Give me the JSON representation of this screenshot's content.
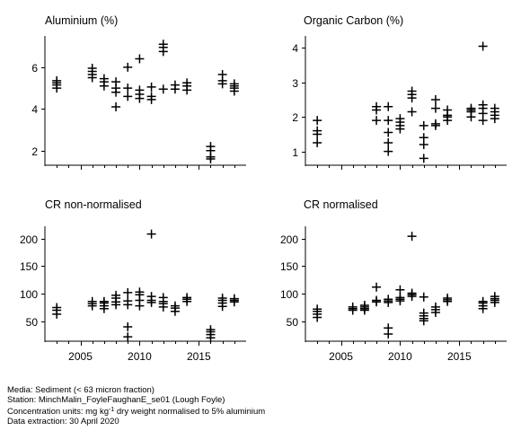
{
  "chart_data": [
    {
      "type": "scatter",
      "title": "Aluminium (%)",
      "xlim": [
        2002,
        2019
      ],
      "ylim": [
        1.3,
        7.5
      ],
      "x_ticks": [
        2005,
        2010,
        2015
      ],
      "y_ticks": [
        2,
        4,
        6
      ],
      "x_tick_labels_shown": false,
      "points": [
        [
          2003,
          5.0
        ],
        [
          2003,
          5.15
        ],
        [
          2003,
          5.25
        ],
        [
          2003,
          5.35
        ],
        [
          2006,
          5.5
        ],
        [
          2006,
          5.65
        ],
        [
          2006,
          5.8
        ],
        [
          2006,
          5.95
        ],
        [
          2007,
          5.1
        ],
        [
          2007,
          5.3
        ],
        [
          2007,
          5.45
        ],
        [
          2008,
          4.1
        ],
        [
          2008,
          4.8
        ],
        [
          2008,
          5.0
        ],
        [
          2008,
          5.3
        ],
        [
          2009,
          4.6
        ],
        [
          2009,
          5.0
        ],
        [
          2009,
          6.0
        ],
        [
          2010,
          4.5
        ],
        [
          2010,
          4.7
        ],
        [
          2010,
          4.9
        ],
        [
          2010,
          6.4
        ],
        [
          2011,
          4.45
        ],
        [
          2011,
          4.6
        ],
        [
          2011,
          5.05
        ],
        [
          2012,
          4.95
        ],
        [
          2012,
          6.75
        ],
        [
          2012,
          6.95
        ],
        [
          2012,
          7.1
        ],
        [
          2013,
          4.95
        ],
        [
          2013,
          5.15
        ],
        [
          2014,
          4.9
        ],
        [
          2014,
          5.1
        ],
        [
          2014,
          5.25
        ],
        [
          2016,
          1.6
        ],
        [
          2016,
          1.7
        ],
        [
          2016,
          2.0
        ],
        [
          2016,
          2.2
        ],
        [
          2017,
          5.2
        ],
        [
          2017,
          5.35
        ],
        [
          2017,
          5.65
        ],
        [
          2018,
          4.85
        ],
        [
          2018,
          5.0
        ],
        [
          2018,
          5.1
        ],
        [
          2018,
          5.2
        ]
      ]
    },
    {
      "type": "scatter",
      "title": "Organic Carbon (%)",
      "xlim": [
        2002,
        2019
      ],
      "ylim": [
        0.6,
        4.35
      ],
      "x_ticks": [
        2005,
        2010,
        2015
      ],
      "y_ticks": [
        1,
        2,
        3,
        4
      ],
      "x_tick_labels_shown": false,
      "points": [
        [
          2003,
          1.25
        ],
        [
          2003,
          1.5
        ],
        [
          2003,
          1.6
        ],
        [
          2003,
          1.9
        ],
        [
          2008,
          1.9
        ],
        [
          2008,
          2.2
        ],
        [
          2008,
          2.3
        ],
        [
          2009,
          1.0
        ],
        [
          2009,
          1.25
        ],
        [
          2009,
          1.55
        ],
        [
          2009,
          1.9
        ],
        [
          2009,
          2.3
        ],
        [
          2010,
          1.65
        ],
        [
          2010,
          1.75
        ],
        [
          2010,
          1.85
        ],
        [
          2010,
          1.95
        ],
        [
          2011,
          2.15
        ],
        [
          2011,
          2.55
        ],
        [
          2011,
          2.65
        ],
        [
          2011,
          2.75
        ],
        [
          2012,
          0.8
        ],
        [
          2012,
          1.2
        ],
        [
          2012,
          1.4
        ],
        [
          2012,
          1.75
        ],
        [
          2013,
          1.75
        ],
        [
          2013,
          1.8
        ],
        [
          2013,
          2.25
        ],
        [
          2013,
          2.5
        ],
        [
          2014,
          1.9
        ],
        [
          2014,
          2.0
        ],
        [
          2014,
          2.05
        ],
        [
          2014,
          2.2
        ],
        [
          2016,
          2.0
        ],
        [
          2016,
          2.15
        ],
        [
          2016,
          2.2
        ],
        [
          2016,
          2.25
        ],
        [
          2017,
          1.9
        ],
        [
          2017,
          2.1
        ],
        [
          2017,
          2.25
        ],
        [
          2017,
          2.35
        ],
        [
          2017,
          4.05
        ],
        [
          2018,
          1.95
        ],
        [
          2018,
          2.05
        ],
        [
          2018,
          2.15
        ],
        [
          2018,
          2.25
        ]
      ]
    },
    {
      "type": "scatter",
      "title": "CR non-normalised",
      "xlim": [
        2002,
        2019
      ],
      "ylim": [
        14,
        222
      ],
      "x_ticks": [
        2005,
        2010,
        2015
      ],
      "y_ticks": [
        50,
        100,
        150,
        200
      ],
      "x_tick_labels_shown": true,
      "x_tick_labels": [
        "2005",
        "2010",
        "2015"
      ],
      "points": [
        [
          2003,
          63
        ],
        [
          2003,
          70
        ],
        [
          2003,
          75
        ],
        [
          2006,
          78
        ],
        [
          2006,
          82
        ],
        [
          2006,
          86
        ],
        [
          2007,
          73
        ],
        [
          2007,
          78
        ],
        [
          2007,
          83
        ],
        [
          2007,
          86
        ],
        [
          2008,
          80
        ],
        [
          2008,
          85
        ],
        [
          2008,
          92
        ],
        [
          2008,
          97
        ],
        [
          2009,
          22
        ],
        [
          2009,
          40
        ],
        [
          2009,
          80
        ],
        [
          2009,
          87
        ],
        [
          2009,
          102
        ],
        [
          2010,
          78
        ],
        [
          2010,
          88
        ],
        [
          2010,
          98
        ],
        [
          2010,
          103
        ],
        [
          2011,
          84
        ],
        [
          2011,
          88
        ],
        [
          2011,
          95
        ],
        [
          2011,
          208
        ],
        [
          2012,
          76
        ],
        [
          2012,
          82
        ],
        [
          2012,
          86
        ],
        [
          2012,
          93
        ],
        [
          2013,
          68
        ],
        [
          2013,
          74
        ],
        [
          2013,
          78
        ],
        [
          2014,
          86
        ],
        [
          2014,
          90
        ],
        [
          2014,
          93
        ],
        [
          2016,
          20
        ],
        [
          2016,
          26
        ],
        [
          2016,
          31
        ],
        [
          2016,
          35
        ],
        [
          2017,
          77
        ],
        [
          2017,
          83
        ],
        [
          2017,
          88
        ],
        [
          2017,
          92
        ],
        [
          2018,
          85
        ],
        [
          2018,
          88
        ],
        [
          2018,
          91
        ]
      ]
    },
    {
      "type": "scatter",
      "title": "CR normalised",
      "xlim": [
        2002,
        2019
      ],
      "ylim": [
        14,
        222
      ],
      "x_ticks": [
        2005,
        2010,
        2015
      ],
      "y_ticks": [
        50,
        100,
        150,
        200
      ],
      "x_tick_labels_shown": true,
      "x_tick_labels": [
        "2005",
        "2010",
        "2015"
      ],
      "points": [
        [
          2003,
          57
        ],
        [
          2003,
          63
        ],
        [
          2003,
          68
        ],
        [
          2003,
          72
        ],
        [
          2006,
          70
        ],
        [
          2006,
          73
        ],
        [
          2006,
          76
        ],
        [
          2007,
          70
        ],
        [
          2007,
          73
        ],
        [
          2007,
          76
        ],
        [
          2007,
          79
        ],
        [
          2008,
          85
        ],
        [
          2008,
          88
        ],
        [
          2008,
          112
        ],
        [
          2009,
          27
        ],
        [
          2009,
          38
        ],
        [
          2009,
          84
        ],
        [
          2009,
          87
        ],
        [
          2009,
          90
        ],
        [
          2010,
          87
        ],
        [
          2010,
          90
        ],
        [
          2010,
          93
        ],
        [
          2010,
          107
        ],
        [
          2011,
          95
        ],
        [
          2011,
          98
        ],
        [
          2011,
          101
        ],
        [
          2011,
          204
        ],
        [
          2012,
          51
        ],
        [
          2012,
          55
        ],
        [
          2012,
          60
        ],
        [
          2012,
          65
        ],
        [
          2012,
          94
        ],
        [
          2013,
          66
        ],
        [
          2013,
          71
        ],
        [
          2013,
          76
        ],
        [
          2014,
          86
        ],
        [
          2014,
          89
        ],
        [
          2014,
          92
        ],
        [
          2017,
          73
        ],
        [
          2017,
          78
        ],
        [
          2017,
          83
        ],
        [
          2017,
          86
        ],
        [
          2018,
          84
        ],
        [
          2018,
          88
        ],
        [
          2018,
          91
        ],
        [
          2018,
          95
        ]
      ]
    }
  ],
  "footer": {
    "media": "Media: Sediment (< 63 micron fraction)",
    "station": "Station: MinchMalin_FoyleFaughanE_se01 (Lough Foyle)",
    "units_prefix": "Concentration units:  mg kg",
    "units_sup": "-1",
    "units_suffix": " dry weight normalised to 5% aluminium",
    "extraction": "Data extraction: 30 April 2020"
  }
}
